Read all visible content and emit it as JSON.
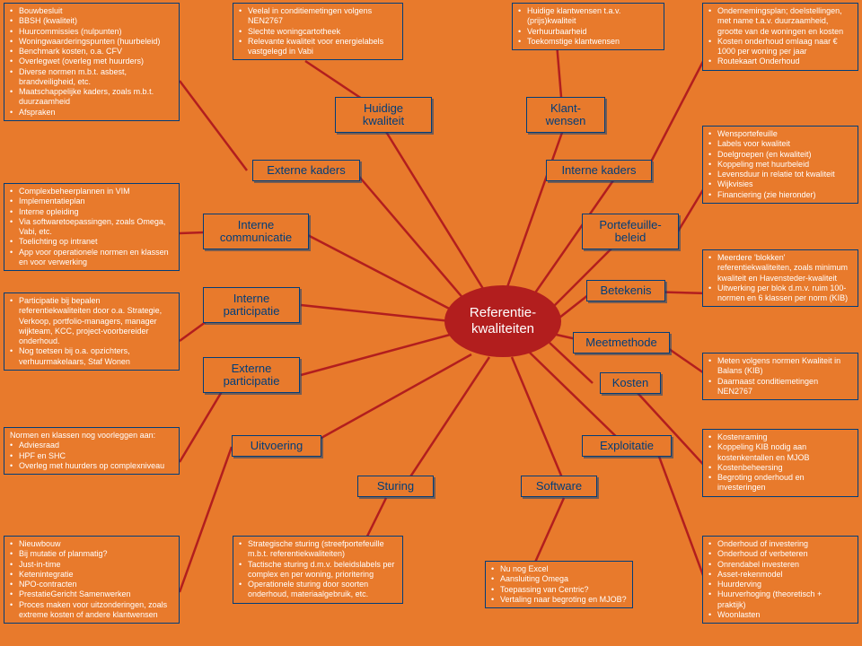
{
  "colors": {
    "background": "#e87a2c",
    "box_border": "#003d7a",
    "box_text": "#ffffff",
    "node_text": "#003d7a",
    "connector": "#b21e1e",
    "center_bg": "#b21e1e",
    "center_text": "#ffffff"
  },
  "center": {
    "label": "Referentie-\nkwaliteiten"
  },
  "nodes": {
    "huidige_kwaliteit": "Huidige\nkwaliteit",
    "klant_wensen": "Klant-\nwensen",
    "externe_kaders": "Externe kaders",
    "interne_kaders": "Interne kaders",
    "interne_communicatie": "Interne\ncommunicatie",
    "portefeuille_beleid": "Portefeuille-\nbeleid",
    "interne_participatie": "Interne\nparticipatie",
    "betekenis": "Betekenis",
    "externe_participatie": "Externe\nparticipatie",
    "meetmethode": "Meetmethode",
    "kosten": "Kosten",
    "uitvoering": "Uitvoering",
    "exploitatie": "Exploitatie",
    "sturing": "Sturing",
    "software": "Software"
  },
  "boxes": {
    "left1": [
      "Bouwbesluit",
      "BBSH (kwaliteit)",
      "Huurcommissies (nulpunten)",
      "Woningwaarderingspunten (huurbeleid)",
      "Benchmark kosten, o.a. CFV",
      "Overlegwet (overleg met huurders)",
      "Diverse normen m.b.t. asbest, brandveiligheid, etc.",
      "Maatschappelijke kaders, zoals m.b.t. duurzaamheid",
      "Afspraken"
    ],
    "left2": [
      "Complexbeheerplannen in VIM",
      "Implementatieplan",
      "Interne opleiding",
      "Via softwaretoepassingen, zoals Omega, Vabi, etc.",
      "Toelichting op intranet",
      "App voor operationele normen en klassen en voor verwerking"
    ],
    "left3": [
      "Participatie bij bepalen referentiekwaliteiten door o.a. Strategie, Verkoop, portfolio-managers, manager wijkteam, KCC, project-voorbereider onderhoud.",
      "Nog toetsen bij o.a. opzichters, verhuurmakelaars, Staf Wonen"
    ],
    "left4_intro": "Normen en klassen nog voorleggen aan:",
    "left4": [
      "Adviesraad",
      "HPF en SHC",
      "Overleg met huurders op complexniveau"
    ],
    "left5": [
      "Nieuwbouw",
      "Bij mutatie of planmatig?",
      "Just-in-time",
      "Ketenintegratie",
      "NPO-contracten",
      "PrestatieGericht  Samenwerken",
      "Proces maken voor uitzonderingen, zoals extreme kosten of andere klantwensen"
    ],
    "top_mid": [
      "Veelal in conditiemetingen volgens NEN2767",
      "Slechte woningcartotheek",
      "Relevante kwaliteit voor energielabels vastgelegd in Vabi"
    ],
    "top_right": [
      "Huidige klantwensen t.a.v. (prijs)kwaliteit",
      "Verhuurbaarheid",
      "Toekomstige klantwensen"
    ],
    "right1": [
      "Ondernemingsplan; doelstellingen, met name t.a.v. duurzaamheid, grootte van de woningen en kosten",
      "Kosten onderhoud omlaag naar € 1000 per woning per jaar",
      "Routekaart Onderhoud"
    ],
    "right2": [
      "Wensportefeuille",
      "Labels voor kwaliteit",
      "Doelgroepen (en kwaliteit)",
      "Koppeling met huurbeleid",
      "Levensduur in relatie tot kwaliteit",
      "Wijkvisies",
      "Financiering (zie hieronder)"
    ],
    "right3": [
      "Meerdere 'blokken' referentiekwaliteiten, zoals minimum kwaliteit en Havensteder-kwaliteit",
      "Uitwerking per blok d.m.v. ruim 100-normen en 6 klassen per norm (KIB)"
    ],
    "right4": [
      "Meten volgens normen Kwaliteit in Balans (KIB)",
      "Daarnaast conditiemetingen NEN2767"
    ],
    "right5": [
      "Kostenraming",
      "Koppeling KIB nodig aan kostenkentallen en MJOB",
      "Kostenbeheersing",
      "Begroting onderhoud en investeringen"
    ],
    "right6": [
      "Onderhoud of investering",
      "Onderhoud of verbeteren",
      "Onrendabel investeren",
      "Asset-rekenmodel",
      "Huurderving",
      "Huurverhoging (theoretisch + praktijk)",
      "Woonlasten"
    ],
    "bot_mid": [
      "Strategische sturing (streefportefeuille m.b.t. referentiekwaliteiten)",
      "Tactische sturing d.m.v. beleidslabels per complex en per woning, prioritering",
      "Operationele sturing door soorten onderhoud, materiaalgebruik, etc."
    ],
    "bot_right": [
      "Nu nog Excel",
      "Aansluiting Omega",
      "Toepassing van Centric?",
      "Vertaling naar begroting en MJOB?"
    ]
  }
}
